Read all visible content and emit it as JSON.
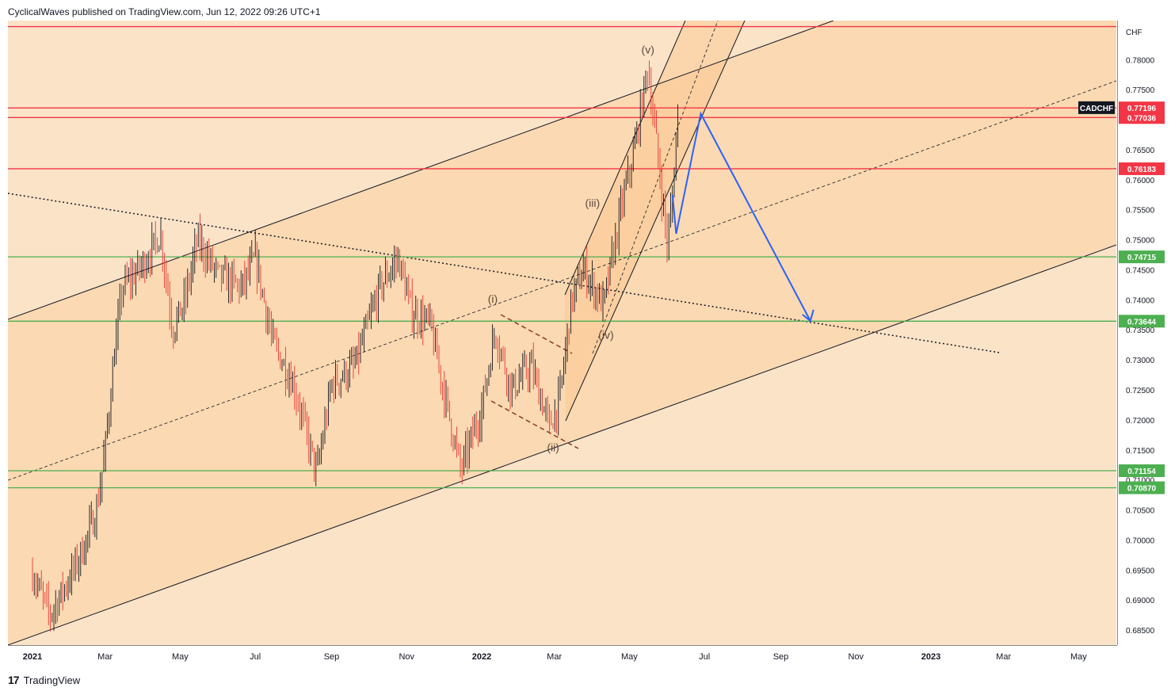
{
  "header": {
    "attribution": "CyclicalWaves published on TradingView.com, Jun 12, 2022 09:26 UTC+1"
  },
  "footer": {
    "brand": "TradingView",
    "logo_icon": "tradingview-logo-icon"
  },
  "chart_data": {
    "type": "candlestick",
    "symbol": "CADCHF",
    "currency": "CHF",
    "y_axis": {
      "ylim": [
        0.6825,
        0.7865
      ],
      "ticks": [
        0.685,
        0.69,
        0.695,
        0.7,
        0.705,
        0.71,
        0.715,
        0.72,
        0.725,
        0.73,
        0.735,
        0.74,
        0.745,
        0.75,
        0.755,
        0.76,
        0.765,
        0.77,
        0.775,
        0.78
      ]
    },
    "x_axis": {
      "labels": [
        "2021",
        "Mar",
        "May",
        "Jul",
        "Sep",
        "Nov",
        "2022",
        "Mar",
        "May",
        "Jul",
        "Sep",
        "Nov",
        "2023",
        "Mar",
        "May"
      ],
      "bold_labels": [
        "2021",
        "2022",
        "2023"
      ]
    },
    "horizontal_levels": [
      {
        "value": 0.77196,
        "label": "0.77196",
        "color": "#f23645"
      },
      {
        "value": 0.77036,
        "label": "0.77036",
        "color": "#f23645"
      },
      {
        "value": 0.76183,
        "label": "0.76183",
        "color": "#f23645"
      },
      {
        "value": 0.74715,
        "label": "0.74715",
        "color": "#4caf50"
      },
      {
        "value": 0.73644,
        "label": "0.73644",
        "color": "#4caf50"
      },
      {
        "value": 0.71154,
        "label": "0.71154",
        "color": "#4caf50"
      },
      {
        "value": 0.7087,
        "label": "0.70870",
        "color": "#4caf50"
      }
    ],
    "top_level": {
      "value": 0.7855,
      "color": "#f23645"
    },
    "symbol_tag": {
      "label": "CADCHF",
      "value": 0.772,
      "color": "#131722"
    },
    "wave_labels": [
      {
        "label": "(i)",
        "date": "2022-01-10",
        "value": 0.7395
      },
      {
        "label": "(ii)",
        "date": "2022-02-28",
        "value": 0.7148
      },
      {
        "label": "(iii)",
        "date": "2022-04-01",
        "value": 0.7555
      },
      {
        "label": "(iv)",
        "date": "2022-04-12",
        "value": 0.7335
      },
      {
        "label": "(v)",
        "date": "2022-05-16",
        "value": 0.781
      }
    ],
    "projection_path": [
      {
        "date": "2022-06-05",
        "value": 0.7575
      },
      {
        "date": "2022-06-08",
        "value": 0.751
      },
      {
        "date": "2022-06-28",
        "value": 0.771
      },
      {
        "date": "2022-09-25",
        "value": 0.7365
      }
    ],
    "series": [
      {
        "name": "CADCHF",
        "approx_path": [
          [
            "2021-01-01",
            0.6945
          ],
          [
            "2021-01-15",
            0.6875
          ],
          [
            "2021-02-01",
            0.694
          ],
          [
            "2021-02-12",
            0.699
          ],
          [
            "2021-02-22",
            0.705
          ],
          [
            "2021-03-01",
            0.715
          ],
          [
            "2021-03-08",
            0.73
          ],
          [
            "2021-03-15",
            0.742
          ],
          [
            "2021-04-01",
            0.746
          ],
          [
            "2021-04-15",
            0.751
          ],
          [
            "2021-04-25",
            0.735
          ],
          [
            "2021-05-05",
            0.74
          ],
          [
            "2021-05-15",
            0.75
          ],
          [
            "2021-06-01",
            0.744
          ],
          [
            "2021-06-20",
            0.742
          ],
          [
            "2021-07-01",
            0.747
          ],
          [
            "2021-07-15",
            0.733
          ],
          [
            "2021-08-01",
            0.726
          ],
          [
            "2021-08-20",
            0.711
          ],
          [
            "2021-09-01",
            0.726
          ],
          [
            "2021-09-20",
            0.729
          ],
          [
            "2021-10-10",
            0.742
          ],
          [
            "2021-10-25",
            0.747
          ],
          [
            "2021-11-05",
            0.738
          ],
          [
            "2021-11-20",
            0.736
          ],
          [
            "2021-12-01",
            0.725
          ],
          [
            "2021-12-15",
            0.7115
          ],
          [
            "2022-01-01",
            0.722
          ],
          [
            "2022-01-12",
            0.735
          ],
          [
            "2022-01-25",
            0.725
          ],
          [
            "2022-02-10",
            0.729
          ],
          [
            "2022-02-25",
            0.719
          ],
          [
            "2022-03-05",
            0.723
          ],
          [
            "2022-03-15",
            0.74
          ],
          [
            "2022-03-25",
            0.745
          ],
          [
            "2022-04-10",
            0.739
          ],
          [
            "2022-04-25",
            0.756
          ],
          [
            "2022-05-05",
            0.765
          ],
          [
            "2022-05-16",
            0.779
          ],
          [
            "2022-05-25",
            0.762
          ],
          [
            "2022-06-01",
            0.749
          ],
          [
            "2022-06-06",
            0.76
          ],
          [
            "2022-06-10",
            0.774
          ]
        ]
      }
    ]
  }
}
